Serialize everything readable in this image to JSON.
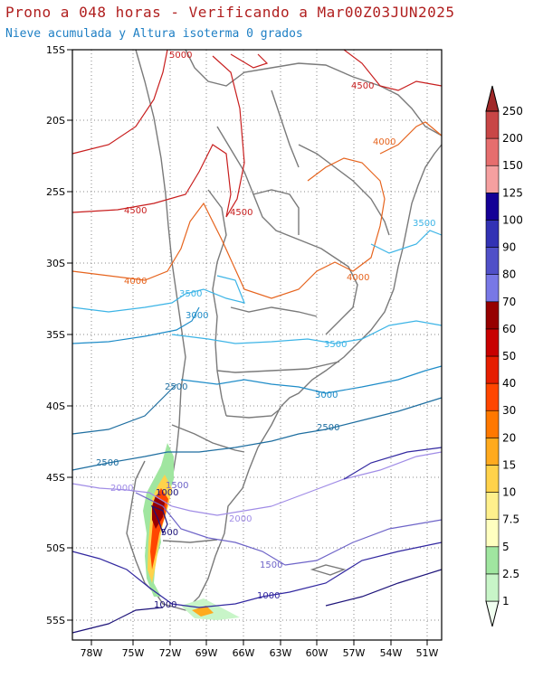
{
  "title": "Prono a 048 horas - Verificando a Mar00Z03JUN2025",
  "subtitle": "Nieve acumulada y Altura isoterma 0 grados",
  "lat_ticks": [
    "15S",
    "20S",
    "25S",
    "30S",
    "35S",
    "40S",
    "45S",
    "50S",
    "55S"
  ],
  "lon_ticks": [
    "78W",
    "75W",
    "72W",
    "69W",
    "66W",
    "63W",
    "60W",
    "57W",
    "54W",
    "51W"
  ],
  "colorbar": {
    "labels": [
      "1",
      "2.5",
      "5",
      "7.5",
      "10",
      "15",
      "20",
      "30",
      "40",
      "50",
      "60",
      "70",
      "80",
      "90",
      "100",
      "125",
      "150",
      "200",
      "250"
    ],
    "colors": [
      "#f0fff0",
      "#c8f5c8",
      "#a0e6a0",
      "#ffffc0",
      "#fff08c",
      "#ffd24b",
      "#ffaa1e",
      "#ff7800",
      "#ff4600",
      "#e61e00",
      "#c80000",
      "#960000",
      "#7878e6",
      "#5050c8",
      "#3232b4",
      "#140096",
      "#f5a0a0",
      "#e66e6e",
      "#c84646",
      "#a02828"
    ]
  },
  "contour_labels": {
    "l5000": "5000",
    "l4500a": "4500",
    "l4500b": "4500",
    "l4500c": "4500",
    "l4000a": "4000",
    "l4000b": "4000",
    "l4000c": "4000",
    "l3500a": "3500",
    "l3500b": "3500",
    "l3500c": "3500",
    "l3000a": "3000",
    "l3000b": "3000",
    "l2500a": "2500",
    "l2500b": "2500",
    "l2500c": "2500",
    "l2000a": "2000",
    "l2000b": "2000",
    "l1500a": "1500",
    "l1500b": "1500",
    "l1000a": "1000",
    "l1000b": "1000",
    "l1000c": "1000",
    "l500": "500"
  }
}
